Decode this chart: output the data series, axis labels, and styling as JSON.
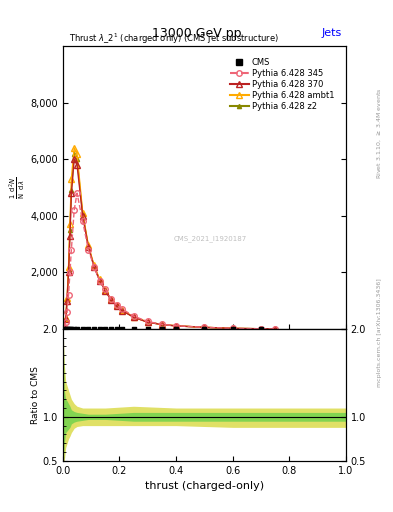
{
  "title_top": "13000 GeV pp",
  "title_right": "Jets",
  "plot_title": "Thrust $\\lambda\\_2^1$ (charged only) (CMS jet substructure)",
  "xlabel": "thrust (charged-only)",
  "ylabel_main": "$\\frac{1}{\\mathrm{N}}$ d$^2$N / d$\\lambda$",
  "ylabel_ratio": "Ratio to CMS",
  "watermark": "CMS_2021_I1920187",
  "right_label_top": "Rivet 3.1.10, $\\geq$ 3.4M events",
  "right_label_bottom": "mcplots.cern.ch [arXiv:1306.3436]",
  "cms_x": [
    0.005,
    0.01,
    0.015,
    0.02,
    0.025,
    0.03,
    0.04,
    0.05,
    0.07,
    0.09,
    0.11,
    0.13,
    0.15,
    0.17,
    0.19,
    0.21,
    0.25,
    0.3,
    0.35,
    0.4,
    0.5,
    0.6,
    0.7
  ],
  "cms_y": [
    0,
    0,
    0,
    0,
    0,
    0,
    0,
    0,
    0,
    0,
    0,
    0,
    0,
    0,
    0,
    0,
    0,
    0,
    0,
    0,
    0,
    0,
    0
  ],
  "pythia_345_x": [
    0.005,
    0.01,
    0.015,
    0.02,
    0.025,
    0.03,
    0.04,
    0.05,
    0.07,
    0.09,
    0.11,
    0.13,
    0.15,
    0.17,
    0.19,
    0.21,
    0.25,
    0.3,
    0.35,
    0.4,
    0.5,
    0.6,
    0.7,
    0.75
  ],
  "pythia_345_y": [
    50,
    250,
    600,
    1200,
    2000,
    2800,
    4200,
    4800,
    3800,
    2800,
    2200,
    1700,
    1400,
    1050,
    850,
    700,
    450,
    260,
    160,
    110,
    55,
    18,
    3,
    0
  ],
  "pythia_370_x": [
    0.005,
    0.01,
    0.015,
    0.02,
    0.025,
    0.03,
    0.04,
    0.05,
    0.07,
    0.09,
    0.11,
    0.13,
    0.15,
    0.17,
    0.19,
    0.21,
    0.25,
    0.3,
    0.35,
    0.4,
    0.5,
    0.6,
    0.7,
    0.75
  ],
  "pythia_370_y": [
    50,
    350,
    1000,
    2000,
    3300,
    4800,
    6000,
    5800,
    4000,
    2900,
    2200,
    1700,
    1350,
    1020,
    810,
    640,
    410,
    235,
    150,
    105,
    52,
    17,
    3,
    0
  ],
  "pythia_ambt1_x": [
    0.005,
    0.01,
    0.015,
    0.02,
    0.025,
    0.03,
    0.04,
    0.05,
    0.07,
    0.09,
    0.11,
    0.13,
    0.15,
    0.17,
    0.19,
    0.21,
    0.25,
    0.3,
    0.35,
    0.4,
    0.5,
    0.6,
    0.7,
    0.75
  ],
  "pythia_ambt1_y": [
    50,
    400,
    1100,
    2200,
    3700,
    5300,
    6400,
    6200,
    4100,
    2950,
    2250,
    1750,
    1380,
    1040,
    830,
    660,
    420,
    240,
    155,
    108,
    54,
    18,
    3,
    0
  ],
  "pythia_z2_x": [
    0.005,
    0.01,
    0.015,
    0.02,
    0.025,
    0.03,
    0.04,
    0.05,
    0.07,
    0.09,
    0.11,
    0.13,
    0.15,
    0.17,
    0.19,
    0.21,
    0.25,
    0.3,
    0.35,
    0.4,
    0.5,
    0.6,
    0.7,
    0.75
  ],
  "pythia_z2_y": [
    50,
    370,
    1050,
    2100,
    3500,
    4900,
    6200,
    6000,
    4050,
    2920,
    2230,
    1730,
    1360,
    1030,
    820,
    650,
    415,
    238,
    152,
    106,
    53,
    17,
    3,
    0
  ],
  "xlim": [
    0,
    1.0
  ],
  "ylim_main": [
    0,
    10000
  ],
  "ylim_ratio": [
    0.5,
    2.0
  ],
  "yticks_main": [
    0,
    2000,
    4000,
    6000,
    8000
  ],
  "color_cms": "#000000",
  "color_345": "#ee6677",
  "color_370": "#bb2222",
  "color_ambt1": "#ffaa00",
  "color_z2": "#888800",
  "color_green_fill": "#44cc44",
  "color_yellow_fill": "#cccc00",
  "ratio_x": [
    0.001,
    0.005,
    0.01,
    0.015,
    0.02,
    0.025,
    0.03,
    0.04,
    0.05,
    0.07,
    0.09,
    0.15,
    0.25,
    0.4,
    0.6,
    0.8,
    1.0
  ],
  "yellow_upper": [
    2.0,
    1.6,
    1.4,
    1.35,
    1.3,
    1.25,
    1.2,
    1.15,
    1.12,
    1.1,
    1.1,
    1.1,
    1.12,
    1.1,
    1.1,
    1.1,
    1.1
  ],
  "yellow_lower": [
    0.4,
    0.5,
    0.65,
    0.7,
    0.75,
    0.78,
    0.82,
    0.87,
    0.89,
    0.9,
    0.9,
    0.9,
    0.9,
    0.9,
    0.88,
    0.88,
    0.88
  ],
  "green_upper": [
    2.0,
    1.3,
    1.2,
    1.18,
    1.15,
    1.12,
    1.08,
    1.06,
    1.05,
    1.04,
    1.03,
    1.03,
    1.05,
    1.05,
    1.05,
    1.05,
    1.05
  ],
  "green_lower": [
    0.4,
    0.7,
    0.82,
    0.84,
    0.86,
    0.88,
    0.92,
    0.94,
    0.95,
    0.96,
    0.97,
    0.97,
    0.95,
    0.95,
    0.95,
    0.95,
    0.95
  ]
}
